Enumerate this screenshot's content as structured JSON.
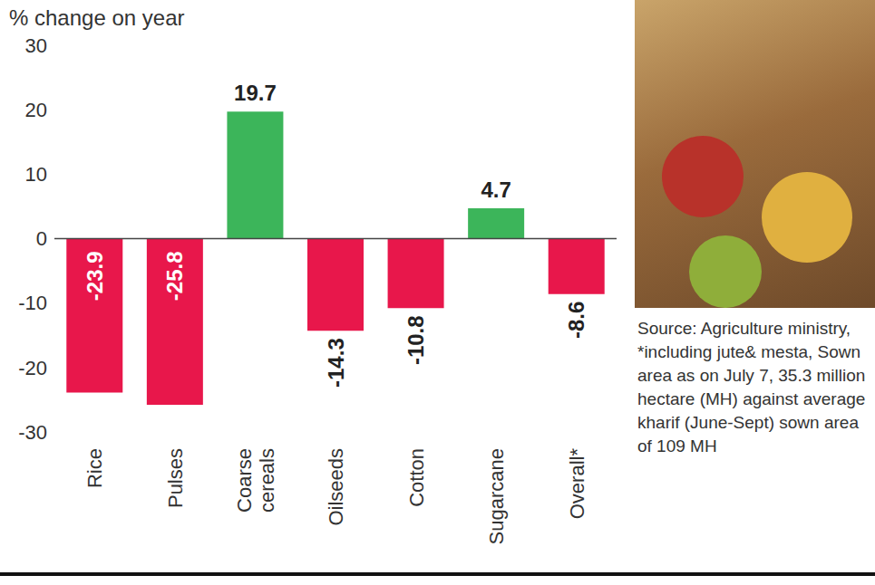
{
  "chart_data": {
    "type": "bar",
    "y_label": "% change on year",
    "categories": [
      "Rice",
      "Pulses",
      "Coarse cereals",
      "Oilseeds",
      "Cotton",
      "Sugarcane",
      "Overall*"
    ],
    "values": [
      -23.9,
      -25.8,
      19.7,
      -14.3,
      -10.8,
      4.7,
      -8.6
    ],
    "colors": [
      "#e8174b",
      "#e8174b",
      "#3cb55a",
      "#e8174b",
      "#e8174b",
      "#3cb55a",
      "#e8174b"
    ],
    "ylim": [
      -30,
      30
    ],
    "yticks": [
      -30,
      -20,
      -10,
      0,
      10,
      20,
      30
    ],
    "grid": false,
    "data_labels": true,
    "annotations": [
      "Source: Agriculture ministry, *including jute& mesta, Sown area as on July 7, 35.3 million hectare (MH) against average kharif (June-Sept) sown area of 109 MH"
    ]
  }
}
